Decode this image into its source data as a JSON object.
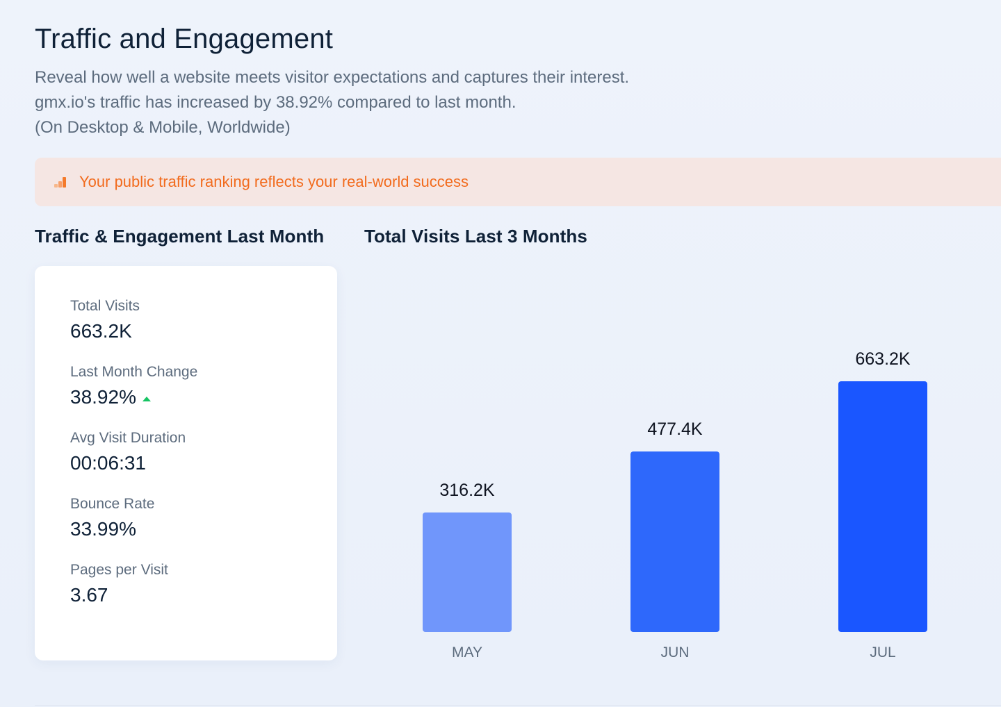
{
  "header": {
    "title": "Traffic and Engagement",
    "description_lines": [
      "Reveal how well a website meets visitor expectations and captures their interest.",
      "gmx.io's traffic has increased by 38.92% compared to last month.",
      "(On Desktop & Mobile, Worldwide)"
    ]
  },
  "banner": {
    "icon": "bar-chart-icon",
    "text": "Your public traffic ranking reflects your real-world success",
    "color": "#f26b1d"
  },
  "sections": {
    "left_title": "Traffic & Engagement Last Month",
    "right_title": "Total Visits Last 3 Months"
  },
  "metrics": [
    {
      "label": "Total Visits",
      "value": "663.2K"
    },
    {
      "label": "Last Month Change",
      "value": "38.92%",
      "trend": "up"
    },
    {
      "label": "Avg Visit Duration",
      "value": "00:06:31"
    },
    {
      "label": "Bounce Rate",
      "value": "33.99%"
    },
    {
      "label": "Pages per Visit",
      "value": "3.67"
    }
  ],
  "chart_data": {
    "type": "bar",
    "title": "Total Visits Last 3 Months",
    "categories": [
      "MAY",
      "JUN",
      "JUL"
    ],
    "values": [
      316.2,
      477.4,
      663.2
    ],
    "value_labels": [
      "316.2K",
      "477.4K",
      "663.2K"
    ],
    "ylim": [
      0,
      663.2
    ],
    "grid": false,
    "colors": [
      "#7096fb",
      "#2e68fb",
      "#1a56ff"
    ]
  }
}
